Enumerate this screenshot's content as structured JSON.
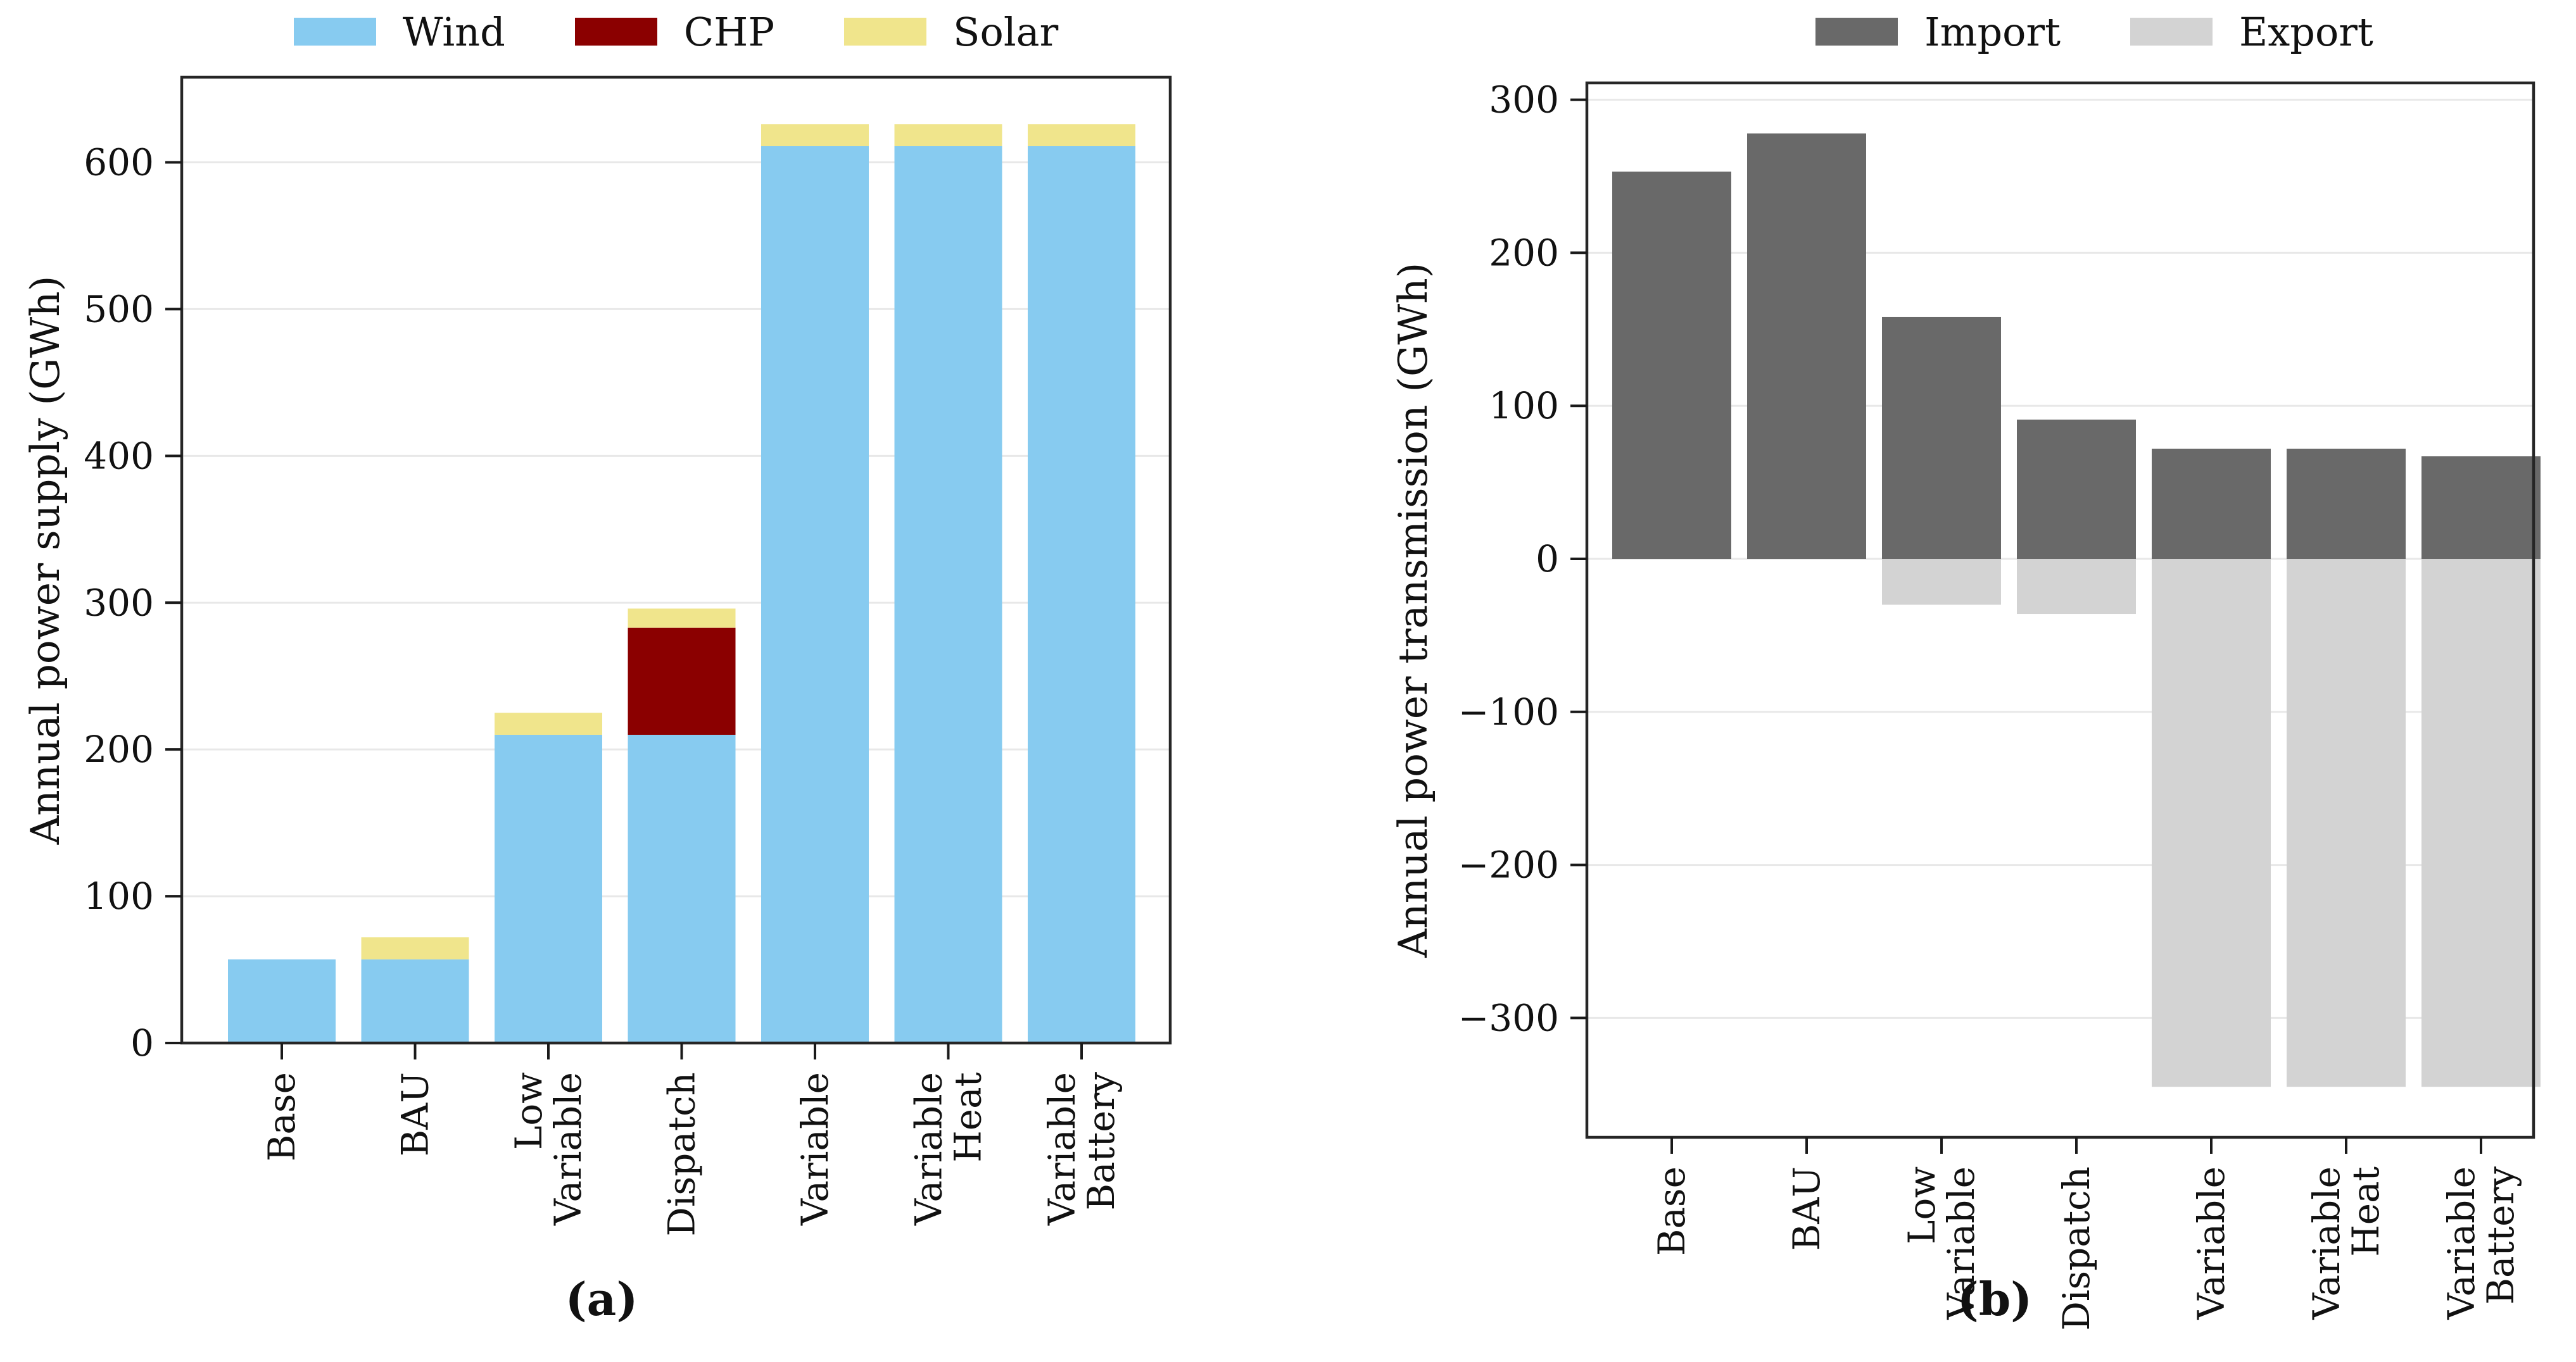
{
  "figure": {
    "background": "#ffffff",
    "text_color": "#111111",
    "spine_color": "#262626",
    "gridline_color": "#e8e8e8"
  },
  "chart_data": [
    {
      "id": "a",
      "type": "bar",
      "stacked": true,
      "caption": "(a)",
      "ylabel": "Annual power supply (GWh)",
      "categories": [
        "Base",
        "BAU",
        "Low\nVariable",
        "Dispatch",
        "Variable",
        "Variable\nHeat",
        "Variable\nBattery"
      ],
      "series": [
        {
          "name": "Wind",
          "color": "#87CBF0",
          "values": [
            57,
            57,
            210,
            210,
            611,
            611,
            611
          ]
        },
        {
          "name": "CHP",
          "color": "#8B0000",
          "values": [
            0,
            0,
            0,
            73,
            0,
            0,
            0
          ]
        },
        {
          "name": "Solar",
          "color": "#F0E58C",
          "values": [
            0,
            15,
            15,
            13,
            15,
            15,
            15
          ]
        }
      ],
      "totals": [
        57,
        72,
        225,
        296,
        626,
        626,
        626
      ],
      "ylim": [
        0,
        658
      ],
      "yticks": [
        0,
        100,
        200,
        300,
        400,
        500,
        600
      ],
      "ytick_labels": [
        "0",
        "100",
        "200",
        "300",
        "400",
        "500",
        "600"
      ],
      "grid": true,
      "legend_position": "top"
    },
    {
      "id": "b",
      "type": "bar",
      "stacked": false,
      "caption": "(b)",
      "ylabel": "Annual power transmission (GWh)",
      "categories": [
        "Base",
        "BAU",
        "Low\nVariable",
        "Dispatch",
        "Variable",
        "Variable\nHeat",
        "Variable\nBattery"
      ],
      "series": [
        {
          "name": "Import",
          "color": "#696969",
          "values": [
            253,
            278,
            158,
            91,
            72,
            72,
            67
          ]
        },
        {
          "name": "Export",
          "color": "#D3D3D3",
          "values": [
            0,
            0,
            -30,
            -36,
            -345,
            -345,
            -345
          ]
        }
      ],
      "ylim": [
        -378,
        311
      ],
      "yticks": [
        300,
        200,
        100,
        0,
        -100,
        -200,
        -300
      ],
      "ytick_labels": [
        "300",
        "200",
        "100",
        "0",
        "−100",
        "−200",
        "−300"
      ],
      "grid": true,
      "legend_position": "top"
    }
  ]
}
